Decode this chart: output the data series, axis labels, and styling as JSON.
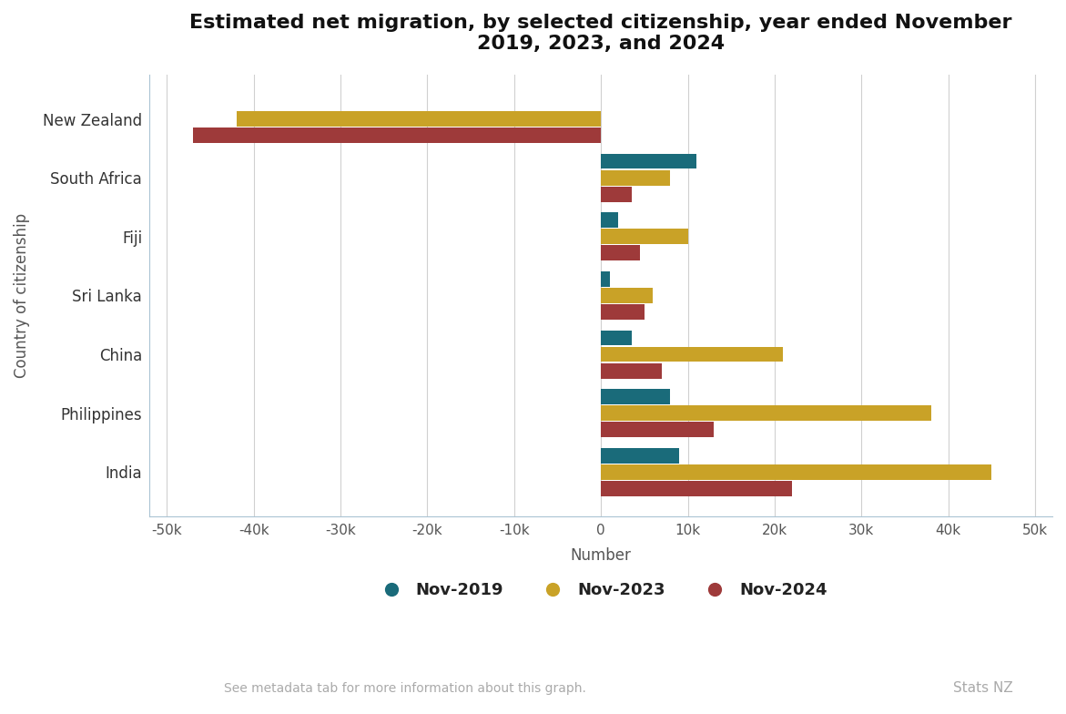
{
  "title": "Estimated net migration, by selected citizenship, year ended November\n2019, 2023, and 2024",
  "categories": [
    "India",
    "Philippines",
    "China",
    "Sri Lanka",
    "Fiji",
    "South Africa",
    "New Zealand"
  ],
  "nov2019": [
    9000,
    8000,
    3500,
    1000,
    2000,
    11000,
    0
  ],
  "nov2023": [
    45000,
    38000,
    21000,
    6000,
    10000,
    8000,
    -42000
  ],
  "nov2024": [
    22000,
    13000,
    7000,
    5000,
    4500,
    3500,
    -47000
  ],
  "color_2019": "#1a6b7a",
  "color_2023": "#c9a227",
  "color_2024": "#9e3a3a",
  "xlabel": "Number",
  "ylabel": "Country of citizenship",
  "xlim": [
    -52000,
    52000
  ],
  "xticks": [
    -50000,
    -40000,
    -30000,
    -20000,
    -10000,
    0,
    10000,
    20000,
    30000,
    40000,
    50000
  ],
  "xtick_labels": [
    "-50k",
    "-40k",
    "-30k",
    "-20k",
    "-10k",
    "0",
    "10k",
    "20k",
    "30k",
    "40k",
    "50k"
  ],
  "background_color": "#ffffff",
  "grid_color": "#d0d0d0",
  "legend_labels": [
    "Nov-2019",
    "Nov-2023",
    "Nov-2024"
  ],
  "footer_note": "See metadata tab for more information about this graph.",
  "footer_brand": "Stats NZ",
  "bar_height": 0.26,
  "bar_spacing": 0.28
}
